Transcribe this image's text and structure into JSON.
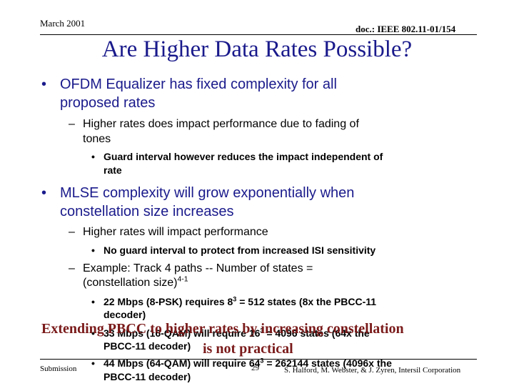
{
  "header": {
    "date": "March 2001",
    "doc": "doc.: IEEE 802.11-01/154"
  },
  "title": "Are Higher Data Rates Possible?",
  "bullets": {
    "b1": {
      "text1": "OFDM Equalizer has fixed complexity for all",
      "text2": "proposed rates"
    },
    "b1_1": {
      "text1": "Higher rates does impact performance due to fading of",
      "text2": "tones"
    },
    "b1_1_1": {
      "text1": "Guard interval however reduces the impact independent of",
      "text2": "rate"
    },
    "b2": {
      "text1": "MLSE complexity will grow exponentially when",
      "text2": "constellation size increases"
    },
    "b2_1": {
      "text": "Higher rates will impact performance"
    },
    "b2_1_1": {
      "text": "No guard interval to protect from increased ISI sensitivity"
    },
    "b2_2": {
      "text1": "Example:  Track 4 paths -- Number of states =",
      "text2": "(constellation size)",
      "sup": "4-1"
    },
    "b2_2_1": {
      "pre": "22 Mbps (8-PSK) requires 8",
      "sup": "3",
      "post": " = 512 states (8x the PBCC-11",
      "text2": "decoder)"
    },
    "b2_2_2": {
      "pre": "33 Mbps (16-QAM) will require 16",
      "sup": "3",
      "post": " = 4096 states (64x the",
      "text2": "PBCC-11 decoder)"
    },
    "b2_2_3": {
      "pre": "44 Mbps (64-QAM) will require 64",
      "sup": "3",
      "post": " = 262144 states (4096x the",
      "text2": "PBCC-11 decoder)"
    }
  },
  "overlay": {
    "line1": "Extending PBCC to higher rates by increasing constellation",
    "line2": "is not practical"
  },
  "footer": {
    "submission": "Submission",
    "page": "29",
    "authors": "S. Halford, M. Webster, & J. Zyren, Intersil Corporation"
  },
  "colors": {
    "title": "#1a1a8c",
    "overlay": "#7a1a1a"
  }
}
